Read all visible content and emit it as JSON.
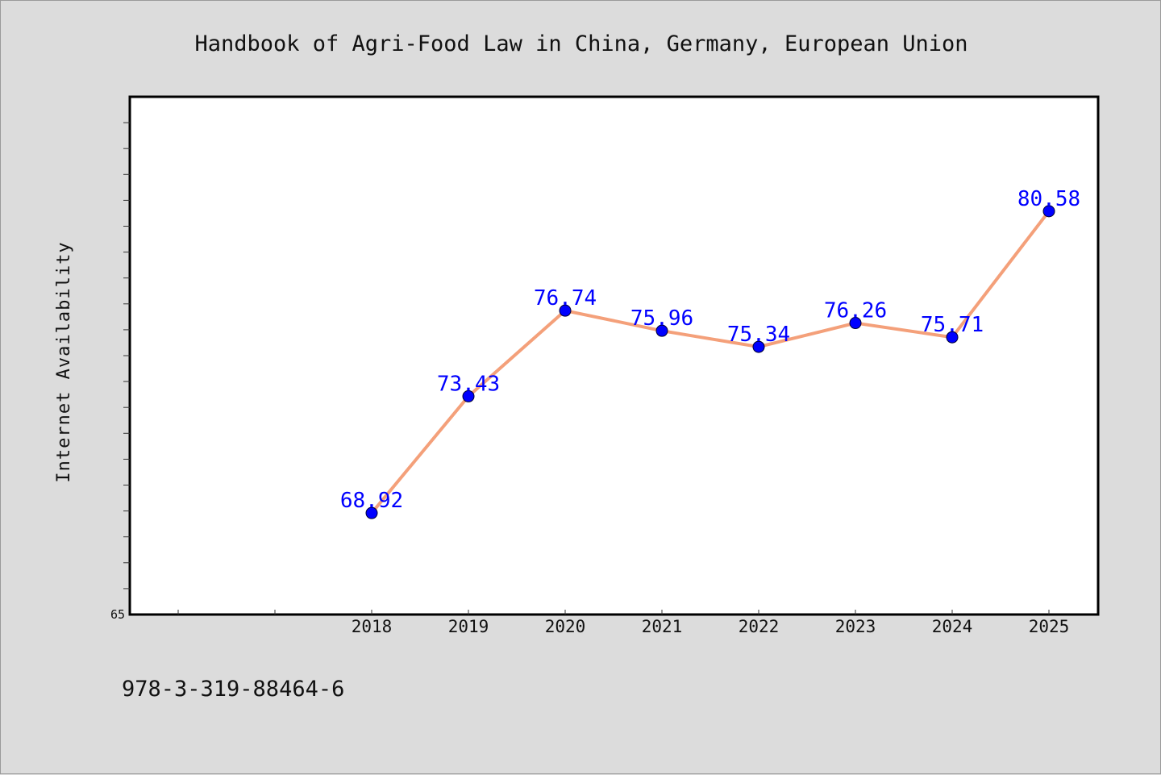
{
  "chart_data": {
    "type": "line",
    "title": "Handbook of Agri-Food Law in China, Germany, European Union",
    "xlabel": "",
    "ylabel": "Internet Availability",
    "categories": [
      "2018",
      "2019",
      "2020",
      "2021",
      "2022",
      "2023",
      "2024",
      "2025"
    ],
    "series": [
      {
        "values": [
          68.92,
          73.43,
          76.74,
          75.96,
          75.34,
          76.26,
          75.71,
          80.58
        ]
      }
    ],
    "data_labels": [
      "68.92",
      "73.43",
      "76.74",
      "75.96",
      "75.34",
      "76.26",
      "75.71",
      "80.58"
    ],
    "ylim": [
      65,
      85
    ],
    "ytick_labels": [
      "65"
    ],
    "grid": false,
    "legend": "none",
    "line_color": "#f4a07a",
    "marker_color": "#0000ff"
  },
  "footer_text": "978-3-319-88464-6"
}
